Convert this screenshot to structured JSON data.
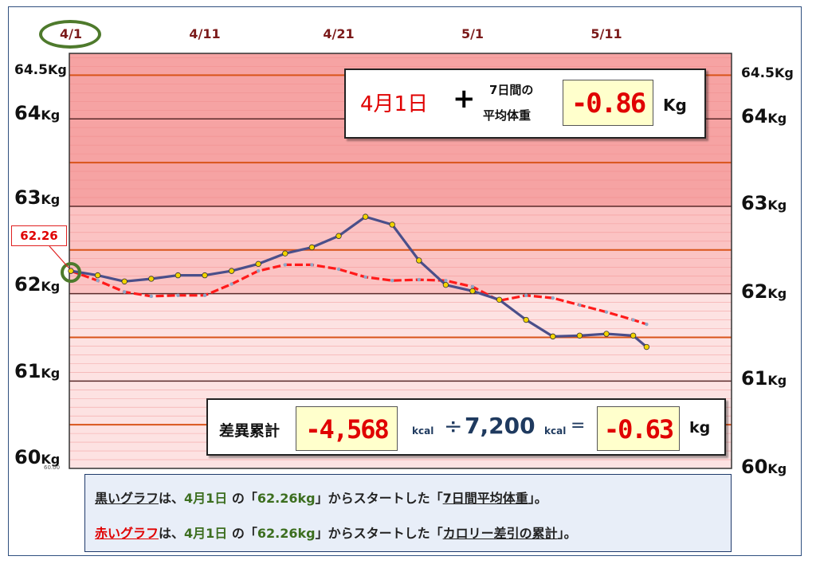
{
  "chart_data": {
    "type": "line",
    "x_ticks": [
      "4/1",
      "4/11",
      "4/21",
      "5/1",
      "5/11"
    ],
    "y_ticks": [
      {
        "value": 64.5,
        "label": "64.5",
        "unit": "Kg"
      },
      {
        "value": 64,
        "label": "64",
        "unit": "Kg"
      },
      {
        "value": 63,
        "label": "63",
        "unit": "Kg"
      },
      {
        "value": 62,
        "label": "62",
        "unit": "Kg"
      },
      {
        "value": 61,
        "label": "61",
        "unit": "Kg"
      },
      {
        "value": 60,
        "label": "60",
        "unit": "Kg"
      }
    ],
    "ylim": [
      60,
      64.75
    ],
    "x_days_range": [
      0,
      44
    ],
    "series": [
      {
        "color": "#4a4f8a",
        "marker": "#f2d400",
        "style": "solid",
        "x": [
          0,
          2,
          4,
          6,
          8,
          10,
          12,
          14,
          16,
          18,
          20,
          22,
          24,
          26,
          28,
          30,
          32,
          34,
          36,
          38,
          40,
          42,
          43
        ],
        "y": [
          62.26,
          62.21,
          62.14,
          62.17,
          62.21,
          62.21,
          62.26,
          62.34,
          62.46,
          62.53,
          62.66,
          62.88,
          62.79,
          62.38,
          62.1,
          62.03,
          61.93,
          61.7,
          61.51,
          61.52,
          61.54,
          61.52,
          61.39
        ]
      },
      {
        "color": "#ff1a1a",
        "marker": "#8ea8c8",
        "style": "dashed",
        "x": [
          0,
          2,
          4,
          6,
          8,
          10,
          12,
          14,
          16,
          18,
          20,
          22,
          24,
          26,
          28,
          30,
          32,
          34,
          36,
          38,
          40,
          42,
          43
        ],
        "y": [
          62.26,
          62.15,
          62.02,
          61.97,
          61.98,
          61.98,
          62.11,
          62.26,
          62.33,
          62.33,
          62.28,
          62.19,
          62.15,
          62.16,
          62.15,
          62.08,
          61.92,
          61.98,
          61.95,
          61.87,
          61.79,
          61.7,
          61.65
        ]
      }
    ]
  },
  "axis": {
    "ticks_x": [
      "4/1",
      "4/11",
      "4/21",
      "5/1",
      "5/11"
    ],
    "kg_unit": "Kg"
  },
  "start_callout": "62.26",
  "tiny_label": "60.00",
  "summary_top": {
    "start_date": "4月1日",
    "plus": "+",
    "avg_label_line1": "7日間の",
    "avg_label_line2": "平均体重",
    "avg_change": "-0.86",
    "unit": "Kg"
  },
  "summary_bottom": {
    "label": "差異累計",
    "cumulative_kcal": "-4,568",
    "kcal_unit": "kcal",
    "divide": "÷",
    "divisor": "7,200",
    "equals": "=",
    "result": "-0.63",
    "result_unit": "kg"
  },
  "legend": {
    "line1": {
      "graph_name": "黒いグラフ",
      "text_a": "は、",
      "date": "4月1日",
      "text_b": " の「",
      "value": "62.26kg",
      "text_c": "」からスタートした「",
      "subject": "7日間平均体重",
      "text_d": "」。"
    },
    "line2": {
      "graph_name": "赤いグラフ",
      "text_a": "は、",
      "date": "4月1日",
      "text_b": " の「",
      "value": "62.26kg",
      "text_c": "」からスタートした「",
      "subject": "カロリー差引の累計",
      "text_d": "」。"
    }
  }
}
